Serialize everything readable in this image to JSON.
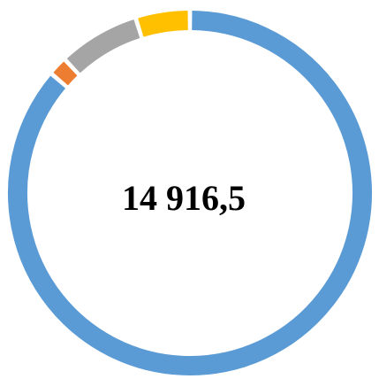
{
  "chart_data": {
    "type": "donut",
    "center_label": "14 916,5",
    "categories": [
      null,
      null,
      null,
      null
    ],
    "values": [
      86.3,
      1.7,
      7.2,
      4.8
    ],
    "colors": [
      "#5b9bd5",
      "#ed7d31",
      "#a5a5a5",
      "#ffc000"
    ]
  }
}
